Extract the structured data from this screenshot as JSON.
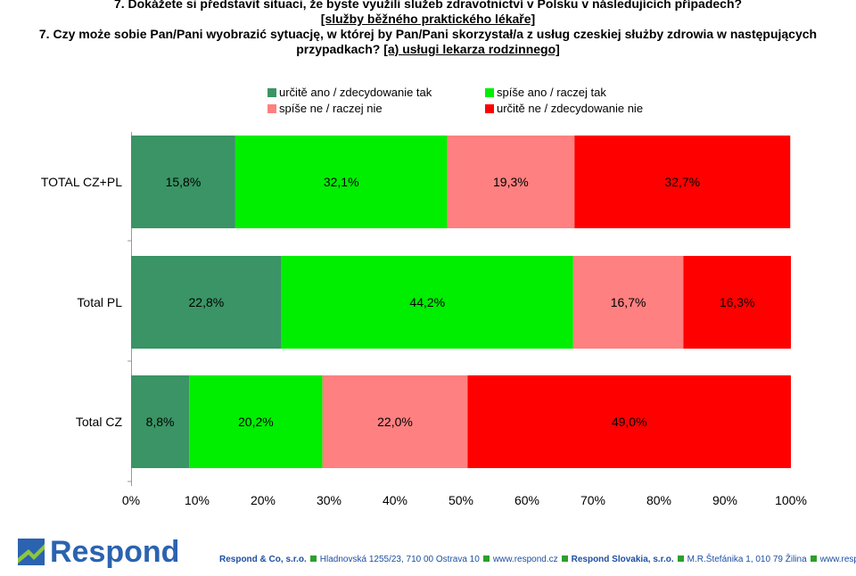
{
  "title": {
    "cz_line1": "7. Dokážete si představit situaci, že byste využili služeb zdravotnictví v Polsku v následujících případech?",
    "cz_line2": "[služby běžného praktického lékaře]",
    "pl_line1": "7. Czy może sobie Pan/Pani wyobrazić sytuację, w której by Pan/Pani skorzystał/a z usług czeskiej służby zdrowia w następujących",
    "pl_line2_text": "przypadkach? ",
    "pl_line2_sub": "[a) usługi lekarza rodzinnego]"
  },
  "colors": {
    "definitely_yes": "#3a9465",
    "rather_yes": "#00ee00",
    "rather_no": "#ff8080",
    "definitely_no": "#ff0000"
  },
  "chart_data": {
    "type": "bar",
    "orientation": "horizontal",
    "stacked": "percent",
    "categories": [
      "TOTAL CZ+PL",
      "Total PL",
      "Total CZ"
    ],
    "series": [
      {
        "name": "určitě ano / zdecydowanie tak",
        "values": [
          15.8,
          22.8,
          8.8
        ],
        "labels": [
          "15,8%",
          "22,8%",
          "8,8%"
        ]
      },
      {
        "name": "spíše ano / raczej tak",
        "values": [
          32.1,
          44.2,
          20.2
        ],
        "labels": [
          "32,1%",
          "44,2%",
          "20,2%"
        ]
      },
      {
        "name": "spíše ne / raczej nie",
        "values": [
          19.3,
          16.7,
          22.0
        ],
        "labels": [
          "19,3%",
          "16,7%",
          "22,0%"
        ]
      },
      {
        "name": "určitě ne / zdecydowanie nie",
        "values": [
          32.7,
          16.3,
          49.0
        ],
        "labels": [
          "32,7%",
          "16,3%",
          "49,0%"
        ]
      }
    ],
    "x_ticks": [
      "0%",
      "10%",
      "20%",
      "30%",
      "40%",
      "50%",
      "60%",
      "70%",
      "80%",
      "90%",
      "100%"
    ],
    "xlim": [
      0,
      100
    ],
    "legend_position": "top",
    "grid": false
  },
  "footer": {
    "logo_text": "Respond",
    "company1": "Respond & Co, s.r.o.",
    "address1": "Hladnovská 1255/23, 710 00  Ostrava 10",
    "web1": "www.respond.cz",
    "company2": "Respond Slovakia, s.r.o.",
    "address2": "M.R.Štefánika 1, 010 79  Žilina",
    "web2": "www.respond.sk"
  }
}
